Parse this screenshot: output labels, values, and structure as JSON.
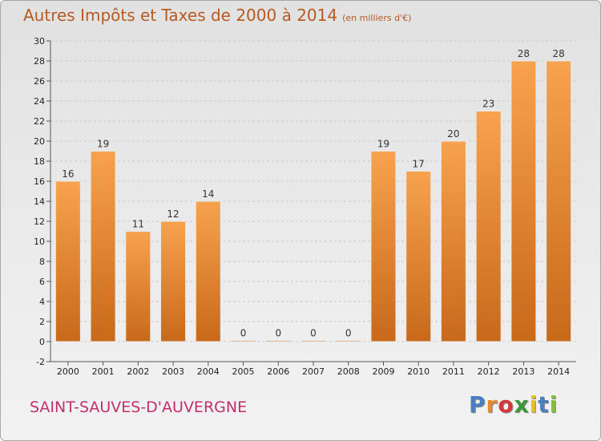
{
  "title": "Autres Impôts et Taxes de 2000 à 2014",
  "unit_label": "(en milliers d'€)",
  "commune": "SAINT-SAUVES-D'AUVERGNE",
  "logo": {
    "text": "Proxiti",
    "letter_colors": [
      "#4a7fc1",
      "#e8882c",
      "#d23a3a",
      "#3a9a3a",
      "#e8c02c",
      "#4a7fc1",
      "#7fc13a"
    ]
  },
  "colors": {
    "bar_light": "#f7a24e",
    "bar_dark": "#c8691a",
    "title": "#b75a22",
    "commune": "#c0306c"
  },
  "chart_data": {
    "type": "bar",
    "title": "Autres Impôts et Taxes de 2000 à 2014",
    "subtitle": "(en milliers d'€)",
    "categories": [
      "2000",
      "2001",
      "2002",
      "2003",
      "2004",
      "2005",
      "2006",
      "2007",
      "2008",
      "2009",
      "2010",
      "2011",
      "2012",
      "2013",
      "2014"
    ],
    "values": [
      16,
      19,
      11,
      12,
      14,
      0,
      0,
      0,
      0,
      19,
      17,
      20,
      23,
      28,
      28
    ],
    "data_labels": [
      "16",
      "19",
      "11",
      "12",
      "14",
      "0",
      "0",
      "0",
      "0",
      "19",
      "17",
      "20",
      "23",
      "28",
      "28"
    ],
    "y_ticks": [
      "-2",
      "0",
      "2",
      "4",
      "6",
      "8",
      "10",
      "12",
      "14",
      "16",
      "18",
      "20",
      "22",
      "24",
      "26",
      "28",
      "30"
    ],
    "ylim": [
      -2,
      30
    ],
    "grid": true,
    "xlabel": "",
    "ylabel": ""
  }
}
